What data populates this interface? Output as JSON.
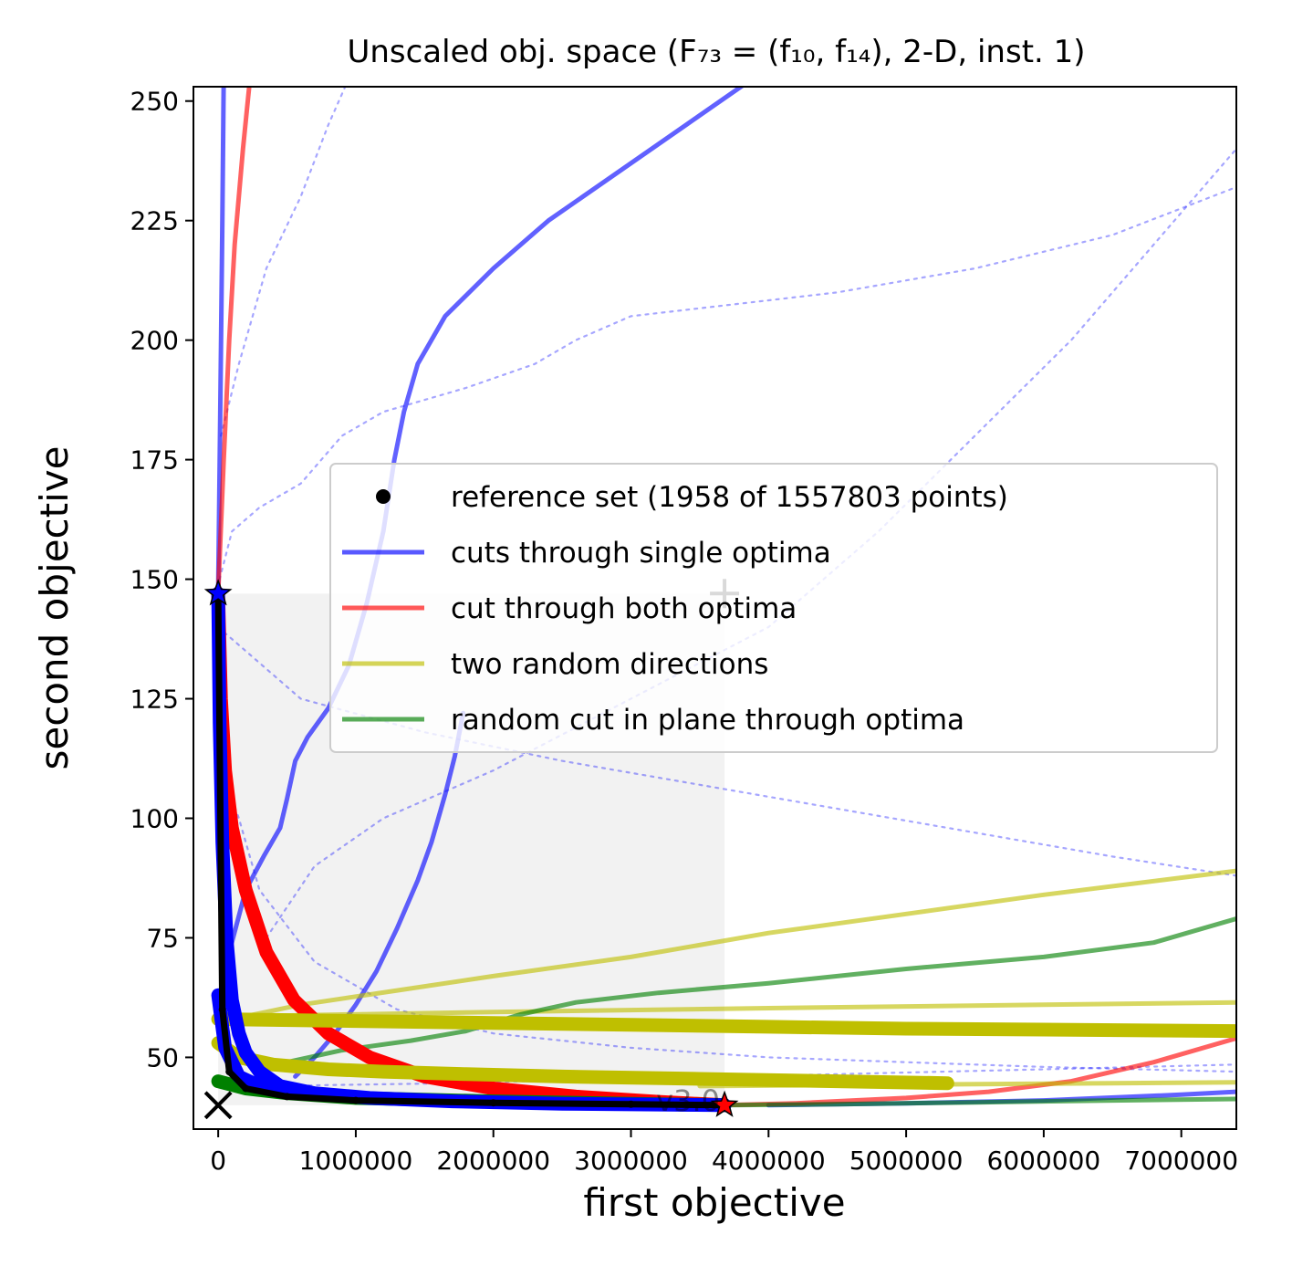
{
  "chart_data": {
    "type": "line",
    "title": "Unscaled obj. space (F₇₃ = (f₁₀, f₁₄), 2-D, inst. 1)",
    "xlabel": "first objective",
    "ylabel": "second objective",
    "xlim": [
      -180000,
      7400000
    ],
    "ylim": [
      35,
      253
    ],
    "xticks": [
      0,
      1000000,
      2000000,
      3000000,
      4000000,
      5000000,
      6000000,
      7000000
    ],
    "xtick_labels": [
      "0",
      "1000000",
      "2000000",
      "3000000",
      "4000000",
      "5000000",
      "6000000",
      "7000000"
    ],
    "yticks": [
      50,
      75,
      100,
      125,
      150,
      175,
      200,
      225,
      250
    ],
    "ytick_labels": [
      "50",
      "75",
      "100",
      "125",
      "150",
      "175",
      "200",
      "225",
      "250"
    ],
    "grid": false,
    "legend_position": "center-right",
    "legend": [
      {
        "label": "reference set (1958 of 1557803 points)",
        "kind": "dot",
        "color": "#000000"
      },
      {
        "label": "cuts through single optima",
        "kind": "line",
        "color": "#0000ff"
      },
      {
        "label": "cut through both optima",
        "kind": "line",
        "color": "#ff0000"
      },
      {
        "label": "two random directions",
        "kind": "line",
        "color": "#bfbf00"
      },
      {
        "label": "random cut in plane through optima",
        "kind": "line",
        "color": "#008000"
      }
    ],
    "watermark": "v3.0",
    "region_of_interest": {
      "x": [
        0,
        3680000
      ],
      "y": [
        40,
        147
      ]
    },
    "optima": [
      {
        "name": "first optimum",
        "x": 0,
        "y": 147,
        "color": "#0000ff"
      },
      {
        "name": "second optimum",
        "x": 3680000,
        "y": 40,
        "color": "#ff0000"
      }
    ],
    "ideal_point": {
      "x": 0,
      "y": 40
    },
    "nadir_point": {
      "x": 3680000,
      "y": 147
    },
    "reference_set": {
      "x": [
        0,
        30000,
        80000,
        200000,
        500000,
        1000000,
        2000000,
        3000000,
        3680000
      ],
      "y": [
        147,
        60,
        47,
        43.5,
        41.8,
        41,
        40.5,
        40.2,
        40
      ]
    },
    "series": [
      {
        "group": "single",
        "style": "solid",
        "color": "#0000ff",
        "x": [
          0,
          15000,
          30000,
          40000
        ],
        "y": [
          147,
          185,
          225,
          255
        ]
      },
      {
        "group": "single",
        "style": "solid",
        "color": "#0000ff",
        "x": [
          90000,
          200000,
          330000,
          450000,
          500000,
          560000,
          650000,
          800000,
          950000,
          1080000,
          1200000,
          1280000,
          1350000,
          1450000,
          1650000,
          2000000,
          2400000,
          2900000,
          3400000,
          3900000,
          4300000,
          4500000
        ],
        "y": [
          73,
          85,
          92,
          98,
          104,
          112,
          117,
          123,
          132,
          145,
          160,
          175,
          185,
          195,
          205,
          215,
          225,
          235,
          245,
          255,
          262,
          266
        ]
      },
      {
        "group": "single",
        "style": "solid",
        "color": "#0000ff",
        "x": [
          560000,
          700000,
          850000,
          1000000,
          1150000,
          1300000,
          1450000,
          1550000,
          1650000,
          1720000,
          1780000
        ],
        "y": [
          46,
          50,
          55,
          61,
          68,
          77,
          87,
          95,
          105,
          113,
          122
        ]
      },
      {
        "group": "single",
        "style": "solid",
        "color": "#0000ff",
        "x": [
          4000000,
          5000000,
          6000000,
          7000000,
          7400000
        ],
        "y": [
          40,
          40.4,
          41,
          42.2,
          42.8
        ]
      },
      {
        "group": "single",
        "style": "dotted",
        "color": "#0000ff",
        "x": [
          10000,
          100000,
          300000,
          600000,
          900000,
          1200000,
          1800000,
          2300000,
          2600000,
          3000000,
          3600000,
          4500000,
          5500000,
          6500000,
          7400000
        ],
        "y": [
          150,
          160,
          165,
          170,
          180,
          185,
          190,
          195,
          200,
          205,
          207,
          210,
          215,
          222,
          232
        ]
      },
      {
        "group": "single",
        "style": "dotted",
        "color": "#0000ff",
        "x": [
          20000,
          150000,
          350000,
          600000,
          800000,
          1000000
        ],
        "y": [
          180,
          195,
          215,
          230,
          245,
          258
        ]
      },
      {
        "group": "single",
        "style": "dotted",
        "color": "#0000ff",
        "x": [
          0,
          600000,
          1500000,
          2500000,
          3500000,
          4500000,
          5500000,
          6500000,
          7400000
        ],
        "y": [
          140,
          125,
          118,
          112,
          107,
          102,
          97,
          92,
          88
        ]
      },
      {
        "group": "single",
        "style": "dotted",
        "color": "#0000ff",
        "x": [
          350000,
          700000,
          1200000,
          2000000,
          3000000,
          4000000,
          4800000,
          5500000,
          6200000,
          6800000,
          7400000
        ],
        "y": [
          75,
          90,
          100,
          110,
          125,
          140,
          160,
          180,
          200,
          220,
          240
        ]
      },
      {
        "group": "single",
        "style": "dotted",
        "color": "#0000ff",
        "x": [
          0,
          150000,
          300000,
          700000,
          1300000,
          2000000,
          3000000,
          4000000,
          5000000,
          6000000,
          7400000
        ],
        "y": [
          112,
          100,
          85,
          70,
          60,
          55,
          52,
          50,
          49,
          48,
          47
        ]
      },
      {
        "group": "single",
        "style": "dotted",
        "color": "#0000ff",
        "x": [
          300000,
          1500000,
          3000000,
          4500000,
          6000000,
          7400000
        ],
        "y": [
          44,
          44.5,
          45.5,
          46.5,
          47.5,
          48.5
        ]
      },
      {
        "group": "both",
        "style": "solid",
        "color": "#ff0000",
        "x": [
          0,
          40000,
          80000,
          120000,
          180000,
          250000
        ],
        "y": [
          147,
          175,
          200,
          220,
          240,
          260
        ]
      },
      {
        "group": "both",
        "style": "solid",
        "color": "#ff0000",
        "x": [
          3680000,
          4200000,
          5000000,
          5600000,
          6200000,
          6800000,
          7400000
        ],
        "y": [
          40,
          40.4,
          41.5,
          42.8,
          45,
          49,
          54
        ]
      },
      {
        "group": "both",
        "style": "thick",
        "color": "#ff0000",
        "x": [
          0,
          20000,
          50000,
          100000,
          200000,
          350000,
          550000,
          800000,
          1100000,
          1500000,
          2000000,
          2600000,
          3200000,
          3680000
        ],
        "y": [
          147,
          125,
          110,
          98,
          85,
          72,
          62,
          55,
          50,
          46,
          43.5,
          41.8,
          40.7,
          40
        ]
      },
      {
        "group": "random",
        "style": "solid",
        "color": "#bfbf00",
        "x": [
          100000,
          600000,
          1300000,
          2000000,
          3000000,
          4000000,
          5000000,
          6000000,
          7400000
        ],
        "y": [
          58,
          61,
          64,
          67,
          71,
          76,
          80,
          84,
          89
        ]
      },
      {
        "group": "random",
        "style": "solid",
        "color": "#bfbf00",
        "x": [
          0,
          2000000,
          4000000,
          6000000,
          7400000
        ],
        "y": [
          58.5,
          59.5,
          60.3,
          61,
          61.5
        ]
      },
      {
        "group": "random",
        "style": "solid",
        "color": "#bfbf00",
        "x": [
          3500000,
          5000000,
          6500000,
          7400000
        ],
        "y": [
          44,
          44.3,
          44.6,
          44.8
        ]
      },
      {
        "group": "random",
        "style": "thick",
        "color": "#bfbf00",
        "x": [
          0,
          1000000,
          2000000,
          3000000,
          4000000,
          5000000,
          6000000,
          7400000
        ],
        "y": [
          58,
          57.6,
          57.2,
          56.8,
          56.4,
          56,
          55.8,
          55.5
        ]
      },
      {
        "group": "random",
        "style": "thick",
        "color": "#bfbf00",
        "x": [
          0,
          150000,
          400000,
          800000,
          1200000,
          1800000,
          2500000,
          3500000,
          4500000,
          5300000
        ],
        "y": [
          53,
          50,
          48.5,
          47.5,
          47,
          46.5,
          46,
          45.5,
          45,
          44.6
        ]
      },
      {
        "group": "plane",
        "style": "solid",
        "color": "#008000",
        "x": [
          500000,
          900000,
          1400000,
          1800000,
          2200000,
          2600000,
          3200000,
          4000000,
          5000000,
          6000000,
          6800000,
          7400000
        ],
        "y": [
          49,
          51.5,
          53.5,
          55.5,
          59,
          61.5,
          63.5,
          65.5,
          68.5,
          71,
          74,
          79
        ]
      },
      {
        "group": "plane",
        "style": "solid",
        "color": "#008000",
        "x": [
          3680000,
          4500000,
          5500000,
          6500000,
          7400000
        ],
        "y": [
          40,
          40.2,
          40.6,
          41,
          41.3
        ]
      },
      {
        "group": "plane",
        "style": "thick",
        "color": "#008000",
        "x": [
          0,
          200000,
          500000,
          1000000,
          2000000,
          3000000,
          3680000
        ],
        "y": [
          45,
          43.5,
          42.5,
          41.5,
          40.8,
          40.3,
          40
        ]
      },
      {
        "group": "single",
        "style": "thick",
        "color": "#0000ff",
        "x": [
          0,
          10000,
          30000,
          60000,
          100000,
          150000,
          200000,
          300000,
          450000,
          700000,
          1100000,
          1700000,
          2500000,
          3680000
        ],
        "y": [
          147,
          120,
          95,
          75,
          62,
          55,
          51,
          47,
          44,
          42.5,
          41.5,
          40.8,
          40.3,
          40
        ]
      },
      {
        "group": "single",
        "style": "thick",
        "color": "#0000ff",
        "x": [
          0,
          50000,
          150000,
          300000,
          500000
        ],
        "y": [
          63,
          52,
          46,
          44,
          43
        ]
      }
    ]
  }
}
